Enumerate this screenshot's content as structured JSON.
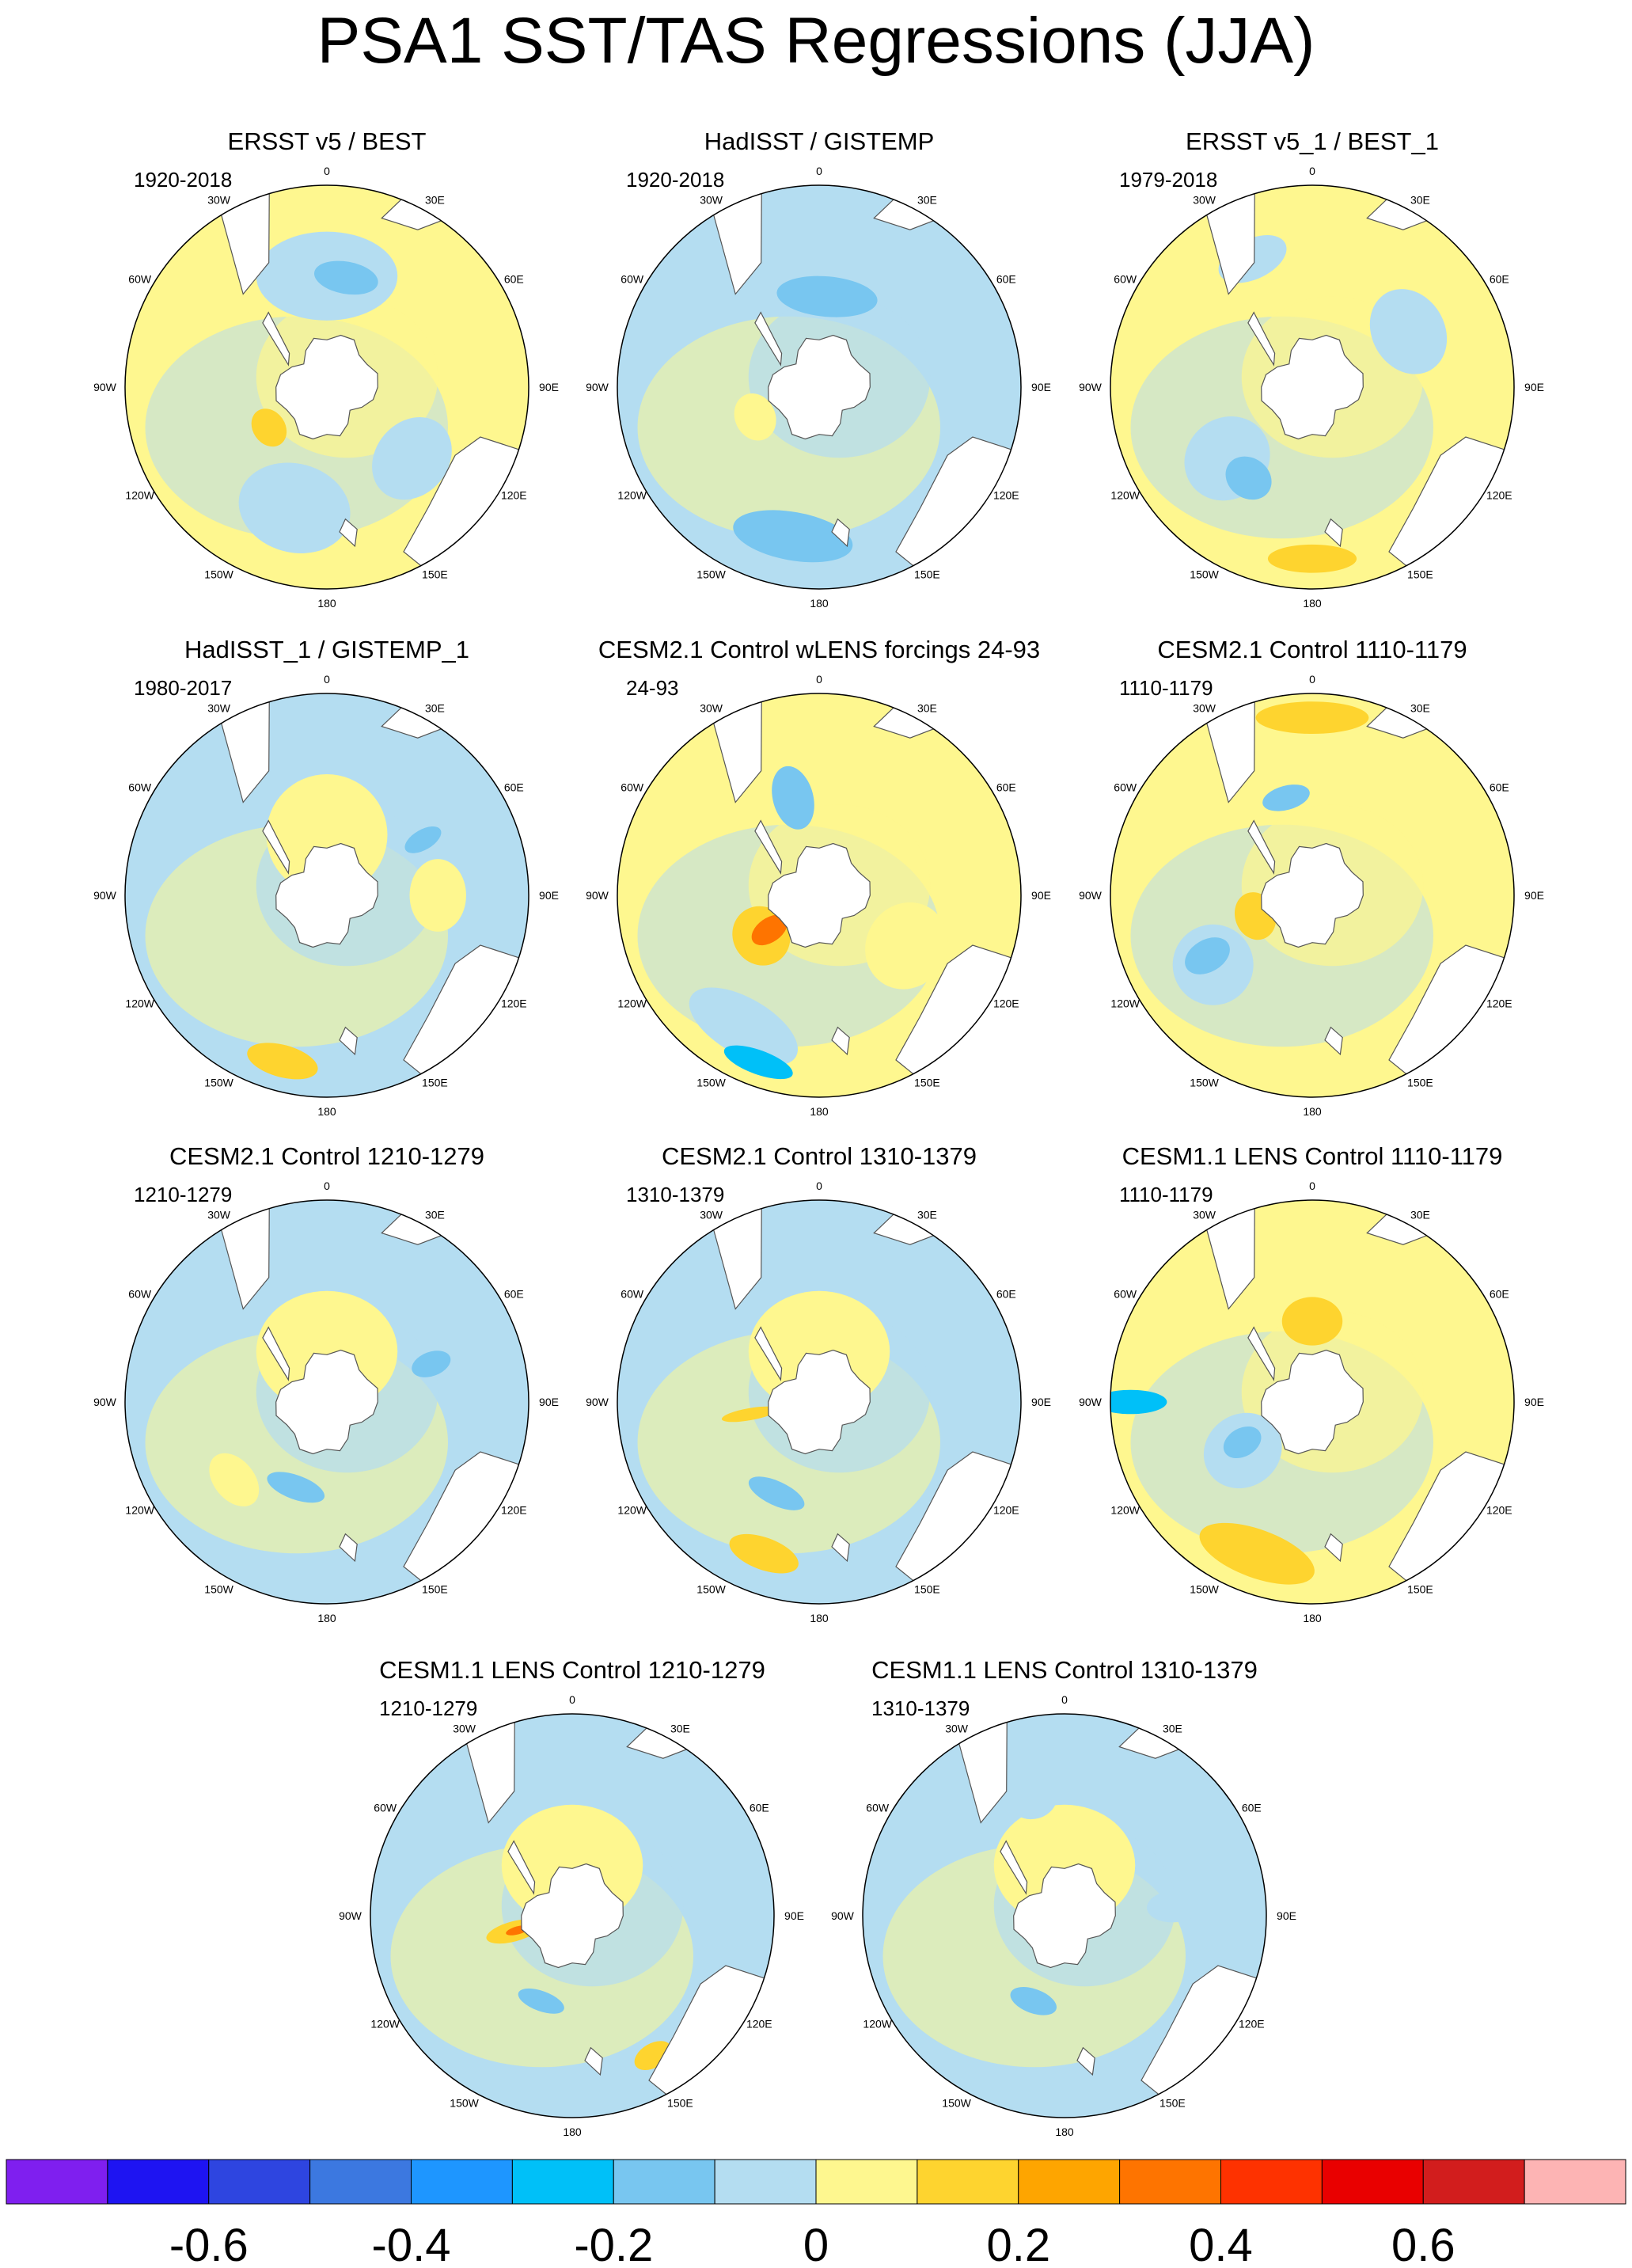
{
  "title": "PSA1 SST/TAS Regressions (JJA)",
  "longitude_labels": [
    "0",
    "30E",
    "60E",
    "90E",
    "120E",
    "150E",
    "180",
    "150W",
    "120W",
    "90W",
    "60W",
    "30W"
  ],
  "panels": [
    {
      "title": "ERSST v5 / BEST",
      "period": "1920-2018",
      "base": "pos"
    },
    {
      "title": "HadISST / GISTEMP",
      "period": "1920-2018",
      "base": "neg"
    },
    {
      "title": "ERSST v5_1 / BEST_1",
      "period": "1979-2018",
      "base": "pos"
    },
    {
      "title": "HadISST_1 / GISTEMP_1",
      "period": "1980-2017",
      "base": "neg"
    },
    {
      "title": "CESM2.1 Control wLENS forcings 24-93",
      "period": "24-93",
      "base": "pos"
    },
    {
      "title": "CESM2.1 Control 1110-1179",
      "period": "1110-1179",
      "base": "pos"
    },
    {
      "title": "CESM2.1 Control 1210-1279",
      "period": "1210-1279",
      "base": "neg"
    },
    {
      "title": "CESM2.1 Control 1310-1379",
      "period": "1310-1379",
      "base": "neg"
    },
    {
      "title": "CESM1.1 LENS Control 1110-1179",
      "period": "1110-1179",
      "base": "pos"
    },
    {
      "title": "CESM1.1 LENS Control 1210-1279",
      "period": "1210-1279",
      "base": "neg"
    },
    {
      "title": "CESM1.1 LENS Control 1310-1379",
      "period": "1310-1379",
      "base": "neg"
    }
  ],
  "colorbar": {
    "colors": [
      "#7f1fef",
      "#1e14f2",
      "#2e45e0",
      "#3c78e0",
      "#1e96ff",
      "#00c0f8",
      "#78c6f0",
      "#b4ddf1",
      "#fef78f",
      "#fed42f",
      "#fea500",
      "#fe7400",
      "#fe3200",
      "#e90000",
      "#d21d1d",
      "#fdb4b4"
    ],
    "tick_labels": [
      "-0.6",
      "-0.4",
      "-0.2",
      "0",
      "0.2",
      "0.4",
      "0.6"
    ]
  }
}
